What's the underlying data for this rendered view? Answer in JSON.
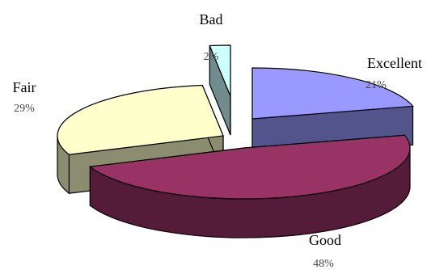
{
  "chart_data": {
    "type": "pie",
    "style": "3d-exploded",
    "title": "",
    "slices": [
      {
        "label": "Excellent",
        "value": 21,
        "display": "21%",
        "color": "#9999ff"
      },
      {
        "label": "Good",
        "value": 48,
        "display": "48%",
        "color": "#993366"
      },
      {
        "label": "Fair",
        "value": 29,
        "display": "29%",
        "color": "#ffffcc"
      },
      {
        "label": "Bad",
        "value": 2,
        "display": "2%",
        "color": "#ccffff"
      }
    ],
    "legend": "none"
  }
}
